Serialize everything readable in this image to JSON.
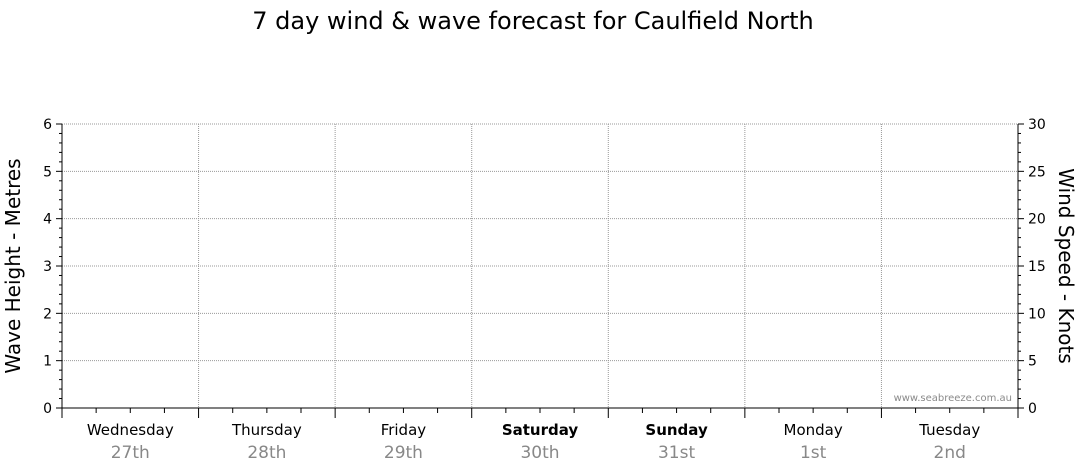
{
  "chart_data": {
    "type": "line",
    "title": "7 day wind & wave forecast for Caulfield North",
    "ylabel_left": "Wave Height - Metres",
    "ylabel_right": "Wind Speed - Knots",
    "ylim_left": [
      0,
      6
    ],
    "ylim_right": [
      0,
      30
    ],
    "yticks_left": [
      "0",
      "1",
      "2",
      "3",
      "4",
      "5",
      "6"
    ],
    "yticks_right": [
      "0",
      "5",
      "10",
      "15",
      "20",
      "25",
      "30"
    ],
    "grid": true,
    "days": [
      {
        "name": "Wednesday",
        "date": "27th",
        "bold": false
      },
      {
        "name": "Thursday",
        "date": "28th",
        "bold": false
      },
      {
        "name": "Friday",
        "date": "29th",
        "bold": false
      },
      {
        "name": "Saturday",
        "date": "30th",
        "bold": true
      },
      {
        "name": "Sunday",
        "date": "31st",
        "bold": true
      },
      {
        "name": "Monday",
        "date": "1st",
        "bold": false
      },
      {
        "name": "Tuesday",
        "date": "2nd",
        "bold": false
      }
    ],
    "series": []
  },
  "watermark": "www.seabreeze.com.au",
  "colors": {
    "grid": "#999999",
    "axis": "#000000",
    "date_text": "#888888"
  }
}
